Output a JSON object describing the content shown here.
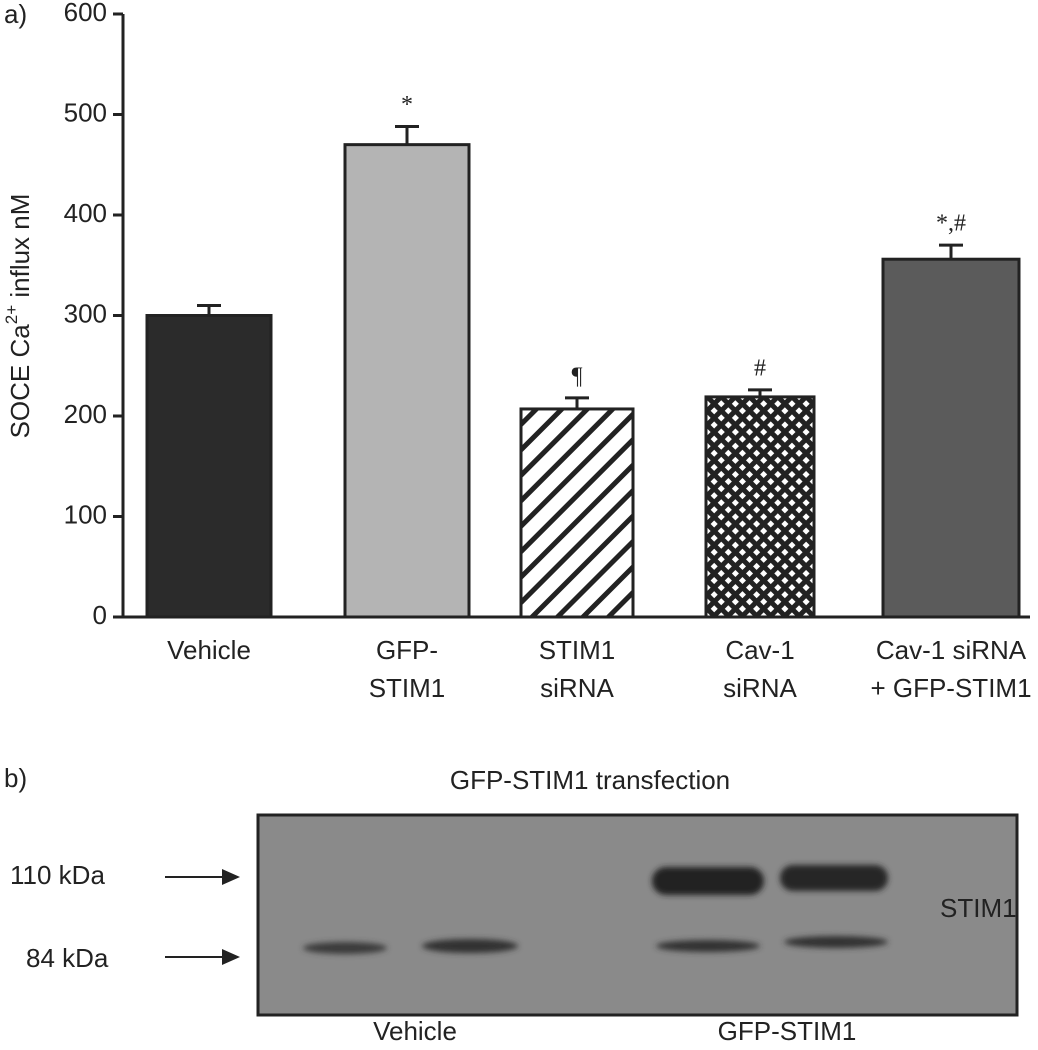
{
  "chart_data": {
    "type": "bar",
    "panel_label": "a)",
    "ylabel": [
      "SOCE Ca",
      "2+",
      " influx nM"
    ],
    "categories": [
      [
        "Vehicle"
      ],
      [
        "GFP-",
        "STIM1"
      ],
      [
        "STIM1",
        "siRNA"
      ],
      [
        "Cav-1",
        "siRNA"
      ],
      [
        "Cav-1 siRNA",
        "+ GFP-STIM1"
      ]
    ],
    "values": [
      300,
      470,
      207,
      219,
      356
    ],
    "errors": [
      10,
      18,
      11,
      7,
      14
    ],
    "annotations": [
      null,
      "*",
      "¶",
      "#",
      "*,#"
    ],
    "colors": [
      "#2b2b2b",
      "#b4b4b4",
      "#ffffff",
      "#ffffff",
      "#5b5b5b"
    ],
    "patterns": [
      "solid",
      "solid",
      "hatch",
      "crosshatch",
      "solid"
    ],
    "ylim": [
      0,
      600
    ],
    "yticks": [
      0,
      100,
      200,
      300,
      400,
      500,
      600
    ]
  },
  "blot": {
    "panel_label": "b)",
    "title": "GFP-STIM1 transfection",
    "markers": [
      "110 kDa",
      "84 kDa"
    ],
    "protein": "STIM1",
    "lanes": [
      "Vehicle",
      "GFP-STIM1"
    ]
  }
}
